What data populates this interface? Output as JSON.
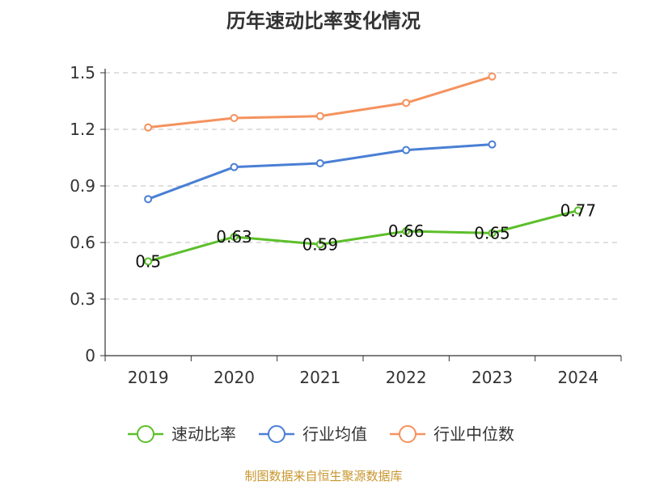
{
  "chart_data": {
    "type": "line",
    "title": "历年速动比率变化情况",
    "categories": [
      "2019",
      "2020",
      "2021",
      "2022",
      "2023",
      "2024"
    ],
    "ylim": [
      0,
      1.5
    ],
    "yticks": [
      "0",
      "0.3",
      "0.6",
      "0.9",
      "1.2",
      "1.5"
    ],
    "grid": true,
    "legend_position": "bottom",
    "series": [
      {
        "name": "速动比率",
        "color": "#5cbf2a",
        "values": [
          0.5,
          0.63,
          0.59,
          0.66,
          0.65,
          0.77
        ],
        "labels": [
          "0.5",
          "0.63",
          "0.59",
          "0.66",
          "0.65",
          "0.77"
        ]
      },
      {
        "name": "行业均值",
        "color": "#4a7fd4",
        "values": [
          0.83,
          1.0,
          1.02,
          1.09,
          1.12,
          null
        ]
      },
      {
        "name": "行业中位数",
        "color": "#f5925e",
        "values": [
          1.21,
          1.26,
          1.27,
          1.34,
          1.48,
          null
        ]
      }
    ]
  },
  "source_text": "制图数据来自恒生聚源数据库"
}
